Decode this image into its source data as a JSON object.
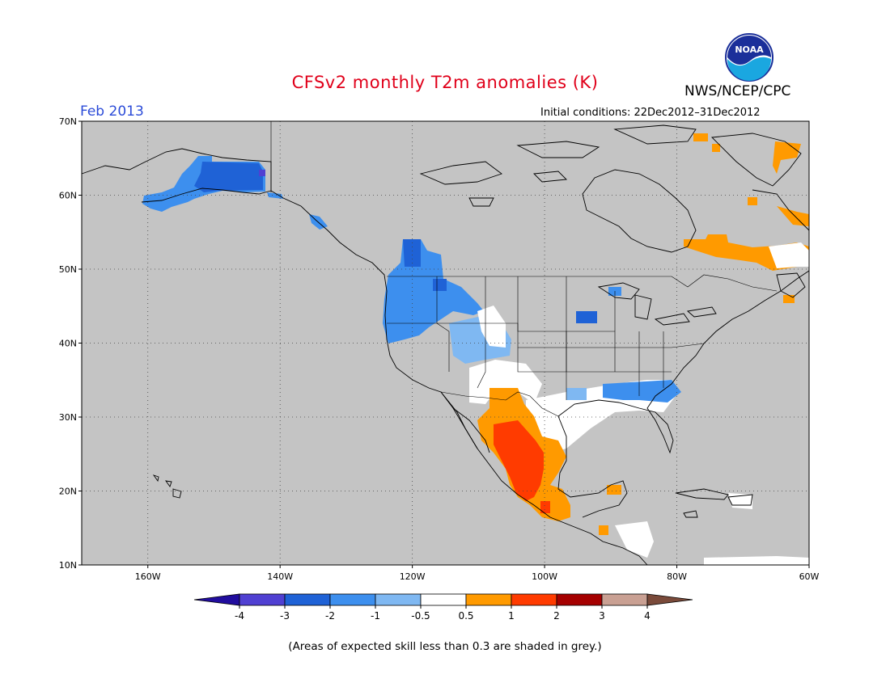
{
  "header": {
    "title": "CFSv2 monthly T2m anomalies (K)",
    "agency": "NWS/NCEP/CPC",
    "month": "Feb 2013",
    "initial_conditions": "Initial conditions: 22Dec2012–31Dec2012",
    "logo_text": "NOAA"
  },
  "map": {
    "lon_range": [
      -170,
      -60
    ],
    "lat_range": [
      10,
      70
    ],
    "background_color": "#c4c4c4",
    "lat_labels": [
      "70N",
      "60N",
      "50N",
      "40N",
      "30N",
      "20N",
      "10N"
    ],
    "lon_labels": [
      "160W",
      "140W",
      "120W",
      "100W",
      "80W",
      "60W"
    ]
  },
  "colorbar": {
    "tick_labels": [
      "-4",
      "-3",
      "-2",
      "-1",
      "-0.5",
      "0.5",
      "1",
      "2",
      "3",
      "4"
    ],
    "colors": [
      "#210d9e",
      "#5040d2",
      "#1f62d6",
      "#3d8fee",
      "#7fb8f2",
      "#ffffff",
      "#ff9a00",
      "#ff3b00",
      "#a50000",
      "#c9a093",
      "#7a4a3a"
    ]
  },
  "footnote": "(Areas of expected skill less than 0.3 are shaded in grey.)"
}
